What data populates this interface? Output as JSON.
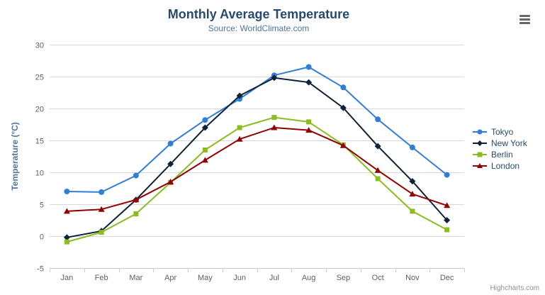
{
  "header": {
    "title": "Monthly Average Temperature",
    "subtitle": "Source: WorldClimate.com"
  },
  "chart_data": {
    "type": "line",
    "categories": [
      "Jan",
      "Feb",
      "Mar",
      "Apr",
      "May",
      "Jun",
      "Jul",
      "Aug",
      "Sep",
      "Oct",
      "Nov",
      "Dec"
    ],
    "series": [
      {
        "name": "Tokyo",
        "color": "#2f7ed8",
        "marker": "circle",
        "values": [
          7.0,
          6.9,
          9.5,
          14.5,
          18.2,
          21.5,
          25.2,
          26.5,
          23.3,
          18.3,
          13.9,
          9.6
        ]
      },
      {
        "name": "New York",
        "color": "#0d233a",
        "marker": "diamond",
        "values": [
          -0.2,
          0.8,
          5.7,
          11.3,
          17.0,
          22.0,
          24.8,
          24.1,
          20.1,
          14.1,
          8.6,
          2.5
        ]
      },
      {
        "name": "Berlin",
        "color": "#8bbc21",
        "marker": "square",
        "values": [
          -0.9,
          0.6,
          3.5,
          8.4,
          13.5,
          17.0,
          18.6,
          17.9,
          14.3,
          9.0,
          3.9,
          1.0
        ]
      },
      {
        "name": "London",
        "color": "#910000",
        "marker": "triangle",
        "values": [
          3.9,
          4.2,
          5.7,
          8.5,
          11.9,
          15.2,
          17.0,
          16.6,
          14.2,
          10.3,
          6.6,
          4.8
        ]
      }
    ],
    "title": "Monthly Average Temperature",
    "subtitle": "Source: WorldClimate.com",
    "xlabel": "",
    "ylabel": "Temperature (°C)",
    "ylim": [
      -5,
      30
    ],
    "ytick_step": 5,
    "grid": true,
    "legend_position": "right"
  },
  "palette": {
    "title": "#274b6d",
    "subtitle": "#4d759e",
    "axis_title": "#4d759e",
    "axis_label": "#606060",
    "grid_line": "#d8d8d8",
    "axis_line": "#c0d0e0",
    "tick": "#c0d0e0",
    "legend_text": "#274b6d",
    "credits": "#909090",
    "export_icon": "#666666",
    "background": "#ffffff"
  },
  "credits": {
    "label": "Highcharts.com"
  },
  "export_menu": {
    "icon": "hamburger-icon"
  }
}
